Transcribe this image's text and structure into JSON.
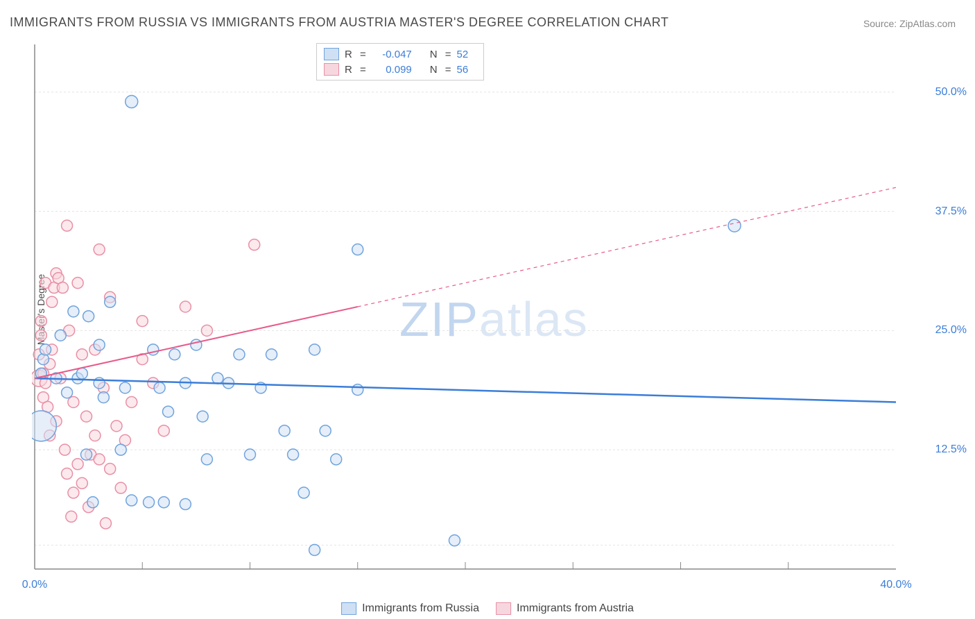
{
  "title": "IMMIGRANTS FROM RUSSIA VS IMMIGRANTS FROM AUSTRIA MASTER'S DEGREE CORRELATION CHART",
  "source": "Source: ZipAtlas.com",
  "ylabel": "Master's Degree",
  "watermark": {
    "z": "Z",
    "ip": "IP",
    "rest": "atlas"
  },
  "chart": {
    "type": "scatter",
    "background_color": "#ffffff",
    "grid_color": "#e4e4e4",
    "axis_color": "#888888",
    "xlim": [
      0,
      40
    ],
    "ylim": [
      0,
      55
    ],
    "x_ticks_major_labels": [
      {
        "v": 0,
        "t": "0.0%"
      },
      {
        "v": 40,
        "t": "40.0%"
      }
    ],
    "x_ticks_minor": [
      5,
      10,
      15,
      20,
      25,
      30,
      35
    ],
    "y_ticks": [
      {
        "v": 12.5,
        "t": "12.5%"
      },
      {
        "v": 25.0,
        "t": "25.0%"
      },
      {
        "v": 37.5,
        "t": "37.5%"
      },
      {
        "v": 50.0,
        "t": "50.0%"
      }
    ],
    "y_gridlines": [
      2.5,
      12.5,
      25.0,
      37.5,
      50.0
    ],
    "series": [
      {
        "key": "russia",
        "name": "Immigrants from Russia",
        "fill": "#cfe0f4",
        "stroke": "#6fa3dd",
        "line_color": "#3b7dd8",
        "line_width": 2.5,
        "line_dash": "none",
        "marker_r_default": 8,
        "R": "-0.047",
        "N": "52",
        "trend": {
          "x1": 0,
          "y1": 20.0,
          "x2": 40,
          "y2": 17.5
        },
        "points": [
          {
            "x": 0.3,
            "y": 15.0,
            "r": 22
          },
          {
            "x": 0.3,
            "y": 20.5
          },
          {
            "x": 0.4,
            "y": 22.0
          },
          {
            "x": 0.5,
            "y": 23.0
          },
          {
            "x": 1.0,
            "y": 20.0
          },
          {
            "x": 1.2,
            "y": 24.5
          },
          {
            "x": 1.5,
            "y": 18.5
          },
          {
            "x": 1.8,
            "y": 27.0
          },
          {
            "x": 2.0,
            "y": 20.0
          },
          {
            "x": 2.2,
            "y": 20.5
          },
          {
            "x": 2.4,
            "y": 12.0
          },
          {
            "x": 2.5,
            "y": 26.5
          },
          {
            "x": 2.7,
            "y": 7.0
          },
          {
            "x": 3.0,
            "y": 19.5
          },
          {
            "x": 3.0,
            "y": 23.5
          },
          {
            "x": 3.2,
            "y": 18.0
          },
          {
            "x": 3.5,
            "y": 28.0
          },
          {
            "x": 4.0,
            "y": 12.5
          },
          {
            "x": 4.2,
            "y": 19.0
          },
          {
            "x": 4.5,
            "y": 7.2
          },
          {
            "x": 4.5,
            "y": 49.0,
            "r": 9
          },
          {
            "x": 5.3,
            "y": 7.0
          },
          {
            "x": 5.5,
            "y": 23.0
          },
          {
            "x": 5.8,
            "y": 19.0
          },
          {
            "x": 6.0,
            "y": 7.0
          },
          {
            "x": 6.2,
            "y": 16.5
          },
          {
            "x": 6.5,
            "y": 22.5
          },
          {
            "x": 7.0,
            "y": 6.8
          },
          {
            "x": 7.0,
            "y": 19.5
          },
          {
            "x": 7.5,
            "y": 23.5
          },
          {
            "x": 7.8,
            "y": 16.0
          },
          {
            "x": 8.0,
            "y": 11.5
          },
          {
            "x": 8.5,
            "y": 20.0
          },
          {
            "x": 9.0,
            "y": 19.5
          },
          {
            "x": 9.5,
            "y": 22.5
          },
          {
            "x": 10.0,
            "y": 12.0
          },
          {
            "x": 10.5,
            "y": 19.0
          },
          {
            "x": 11.0,
            "y": 22.5
          },
          {
            "x": 11.6,
            "y": 14.5
          },
          {
            "x": 12.0,
            "y": 12.0
          },
          {
            "x": 12.5,
            "y": 8.0
          },
          {
            "x": 13.0,
            "y": 2.0
          },
          {
            "x": 13.0,
            "y": 23.0
          },
          {
            "x": 13.5,
            "y": 14.5
          },
          {
            "x": 14.0,
            "y": 11.5
          },
          {
            "x": 15.0,
            "y": 18.8
          },
          {
            "x": 15.0,
            "y": 33.5
          },
          {
            "x": 19.5,
            "y": 3.0
          },
          {
            "x": 32.5,
            "y": 36.0,
            "r": 9
          }
        ]
      },
      {
        "key": "austria",
        "name": "Immigrants from Austria",
        "fill": "#f7d7df",
        "stroke": "#e98fa5",
        "line_color": "#e75a8a",
        "line_width": 2.0,
        "line_dash": "5,5",
        "marker_r_default": 8,
        "R": "0.099",
        "N": "56",
        "trend_solid_until_x": 15,
        "trend": {
          "x1": 0,
          "y1": 20.0,
          "x2": 40,
          "y2": 40.0
        },
        "points": [
          {
            "x": 0.2,
            "y": 20.0,
            "r": 12
          },
          {
            "x": 0.2,
            "y": 22.5
          },
          {
            "x": 0.3,
            "y": 24.5
          },
          {
            "x": 0.3,
            "y": 26.0
          },
          {
            "x": 0.4,
            "y": 20.5
          },
          {
            "x": 0.4,
            "y": 18.0
          },
          {
            "x": 0.5,
            "y": 19.5
          },
          {
            "x": 0.5,
            "y": 30.0
          },
          {
            "x": 0.6,
            "y": 17.0
          },
          {
            "x": 0.7,
            "y": 21.5
          },
          {
            "x": 0.7,
            "y": 14.0
          },
          {
            "x": 0.8,
            "y": 28.0
          },
          {
            "x": 0.8,
            "y": 23.0
          },
          {
            "x": 0.9,
            "y": 29.5
          },
          {
            "x": 1.0,
            "y": 31.0
          },
          {
            "x": 1.0,
            "y": 15.5
          },
          {
            "x": 1.1,
            "y": 30.5
          },
          {
            "x": 1.2,
            "y": 20.0
          },
          {
            "x": 1.3,
            "y": 29.5
          },
          {
            "x": 1.4,
            "y": 12.5
          },
          {
            "x": 1.5,
            "y": 36.0
          },
          {
            "x": 1.5,
            "y": 10.0
          },
          {
            "x": 1.6,
            "y": 25.0
          },
          {
            "x": 1.7,
            "y": 5.5
          },
          {
            "x": 1.8,
            "y": 17.5
          },
          {
            "x": 1.8,
            "y": 8.0
          },
          {
            "x": 2.0,
            "y": 11.0
          },
          {
            "x": 2.0,
            "y": 30.0
          },
          {
            "x": 2.2,
            "y": 22.5
          },
          {
            "x": 2.2,
            "y": 9.0
          },
          {
            "x": 2.4,
            "y": 16.0
          },
          {
            "x": 2.5,
            "y": 6.5
          },
          {
            "x": 2.6,
            "y": 12.0
          },
          {
            "x": 2.8,
            "y": 14.0
          },
          {
            "x": 2.8,
            "y": 23.0
          },
          {
            "x": 3.0,
            "y": 33.5
          },
          {
            "x": 3.0,
            "y": 11.5
          },
          {
            "x": 3.2,
            "y": 19.0
          },
          {
            "x": 3.3,
            "y": 4.8
          },
          {
            "x": 3.5,
            "y": 28.5
          },
          {
            "x": 3.5,
            "y": 10.5
          },
          {
            "x": 3.8,
            "y": 15.0
          },
          {
            "x": 4.0,
            "y": 8.5
          },
          {
            "x": 4.2,
            "y": 13.5
          },
          {
            "x": 4.5,
            "y": 17.5
          },
          {
            "x": 5.0,
            "y": 22.0
          },
          {
            "x": 5.0,
            "y": 26.0
          },
          {
            "x": 5.5,
            "y": 19.5
          },
          {
            "x": 6.0,
            "y": 14.5
          },
          {
            "x": 7.0,
            "y": 27.5
          },
          {
            "x": 8.0,
            "y": 25.0
          },
          {
            "x": 10.2,
            "y": 34.0
          }
        ]
      }
    ]
  },
  "bottom_legend": [
    {
      "swatch_fill": "#cfe0f4",
      "swatch_stroke": "#6fa3dd",
      "label": "Immigrants from Russia"
    },
    {
      "swatch_fill": "#f7d7df",
      "swatch_stroke": "#e98fa5",
      "label": "Immigrants from Austria"
    }
  ]
}
